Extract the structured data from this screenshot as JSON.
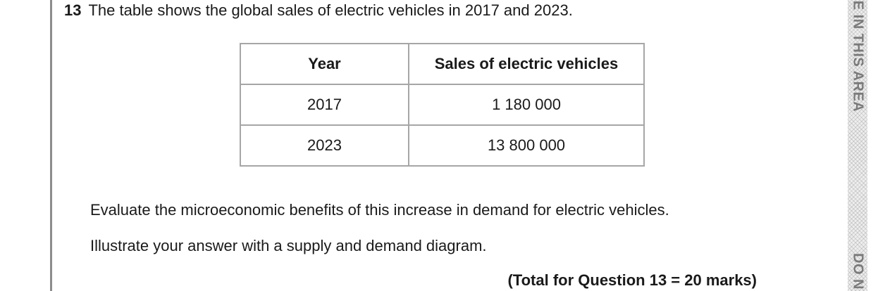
{
  "question": {
    "number": "13",
    "text": "The table shows the global sales of electric vehicles in 2017 and 2023."
  },
  "table": {
    "headers": [
      "Year",
      "Sales of electric vehicles"
    ],
    "rows": [
      [
        "2017",
        "1 180 000"
      ],
      [
        "2023",
        "13 800 000"
      ]
    ]
  },
  "instructions": [
    "Evaluate the microeconomic benefits of this increase in demand for electric vehicles.",
    "Illustrate your answer with a supply and demand diagram."
  ],
  "total_marks": "(Total for Question 13 = 20 marks)",
  "margin": {
    "text_top": "E IN THIS AREA",
    "text_bottom": "DO N"
  }
}
